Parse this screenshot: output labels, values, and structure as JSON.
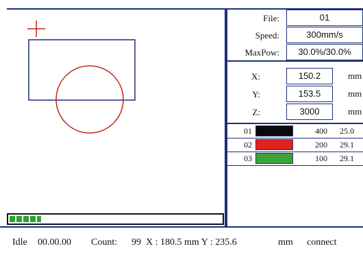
{
  "preview": {
    "objects": [
      "rectangle",
      "circle",
      "origin-cross"
    ],
    "colors": {
      "frame": "#1c2f7a",
      "rectangle": "#1c2f7a",
      "circle": "#c8241c",
      "cross": "#c8241c"
    }
  },
  "progress": {
    "fraction": 0.15,
    "color": "#2ea32e"
  },
  "info": {
    "file_label": "File:",
    "file_value": "01",
    "speed_label": "Speed:",
    "speed_value": "300mm/s",
    "maxpow_label": "MaxPow:",
    "maxpow_value": "30.0%/30.0%"
  },
  "coords": {
    "x_label": "X:",
    "x_value": "150.2",
    "x_unit": "mm",
    "y_label": "Y:",
    "y_value": "153.5",
    "y_unit": "mm",
    "z_label": "Z:",
    "z_value": "3000",
    "z_unit": "mm"
  },
  "layers": [
    {
      "num": "01",
      "color": "#0a0a0a",
      "speed": "400",
      "power": "25.0"
    },
    {
      "num": "02",
      "color": "#e0231f",
      "speed": "200",
      "power": "29.1"
    },
    {
      "num": "03",
      "color": "#3fa33a",
      "speed": "100",
      "power": "29.1"
    }
  ],
  "status": {
    "state": "Idle",
    "time": "00.00.00",
    "count_label": "Count:",
    "count_value": "99",
    "pos_text": "X : 180.5 mm Y : 235.6",
    "unit": "mm",
    "connection": "connect"
  }
}
